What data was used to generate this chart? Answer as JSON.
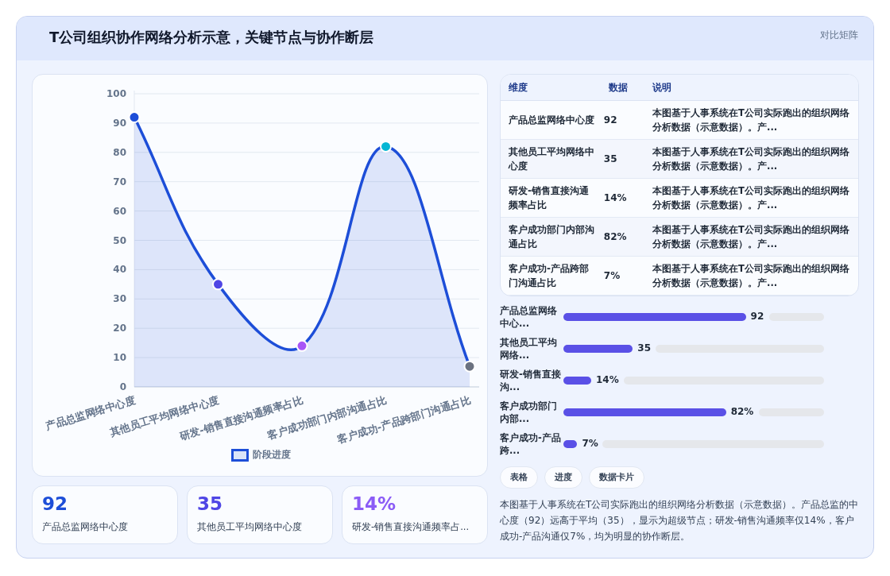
{
  "chart_data": [
    {
      "type": "area",
      "title": "T公司组织协作网络分析示意，关键节点与协作断层",
      "annotations": [
        "对比矩阵"
      ],
      "categories": [
        "产品总监网络中心度",
        "其他员工平均网络中心度",
        "研发-销售直接沟通频率占比",
        "客户成功部门内部沟通占比",
        "客户成功-产品跨部门沟通占比"
      ],
      "series": [
        {
          "name": "阶段进度",
          "color": "#1d4ed8",
          "colors": [
            "#1d4ed8",
            "#4f46e5",
            "#a855f7",
            "#06b6d4",
            "#6b7280"
          ],
          "values": [
            92,
            35,
            14,
            82,
            7
          ]
        }
      ],
      "ylim": [
        0,
        100
      ],
      "yticks": [
        0,
        10,
        20,
        30,
        40,
        50,
        60,
        70,
        80,
        90,
        100
      ],
      "grid": "y",
      "legend": "bottom",
      "marker": "circle"
    },
    {
      "type": "other",
      "annotations": [
        "维度",
        "数据",
        "说明",
        "本图基于人事系统在T公司实际跑出的组织网络分析数据（示意数据）。产...",
        "本图基于人事系统在T公司实际跑出的组织网络分析数据（示意数据）。产...",
        "本图基于人事系统在T公司实际跑出的组织网络分析数据（示意数据）。产...",
        "本图基于人事系统在T公司实际跑出的组织网络分析数据（示意数据）。产...",
        "本图基于人事系统在T公司实际跑出的组织网络分析数据（示意数据）。产..."
      ],
      "categories": [
        "产品总监网络中心度",
        "其他员工平均网络中心度",
        "研发-销售直接沟通频率占比",
        "客户成功部门内部沟通占比",
        "客户成功-产品跨部门沟通占比"
      ],
      "value_labels": [
        "92",
        "35",
        "14%",
        "82%",
        "7%"
      ]
    },
    {
      "type": "bar",
      "orientation": "horizontal",
      "categories": [
        "产品总监网络中心...",
        "其他员工平均网络...",
        "研发-销售直接沟...",
        "客户成功部门内部...",
        "客户成功-产品跨..."
      ],
      "values": [
        92,
        35,
        14,
        82,
        7
      ],
      "value_labels": [
        "92",
        "35",
        "14%",
        "82%",
        "7%"
      ],
      "color": "#5a50e6",
      "annotations": [
        "表格",
        "进度",
        "数据卡片",
        "本图基于人事系统在T公司实际跑出的组织网络分析数据（示意数据）。产品总监的中心度（92）远高于平均（35），显示为超级节点；研发-销售沟通频率仅14%，客户成功-产品沟通仅7%，均为明显的协作断层。"
      ]
    },
    {
      "type": "other",
      "categories": [
        "产品总监网络中心度",
        "其他员工平均网络中心度",
        "研发-销售直接沟通频率占..."
      ],
      "value_labels": [
        "92",
        "35",
        "14%"
      ],
      "colors": [
        "#1d4ed8",
        "#4f46e5",
        "#8b5cf6"
      ]
    }
  ]
}
